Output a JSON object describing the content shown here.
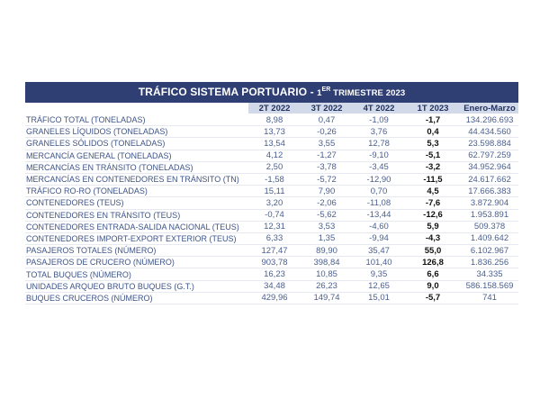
{
  "title": {
    "main": "TRÁFICO SISTEMA PORTUARIO - ",
    "num": "1",
    "sup": "ER",
    "rest": " TRIMESTRE 2023"
  },
  "columns": [
    "2T 2022",
    "3T 2022",
    "4T 2022",
    "1T 2023",
    "Enero-Marzo"
  ],
  "rows": [
    {
      "label": "TRÁFICO TOTAL (TONELADAS)",
      "values": [
        "8,98",
        "0,47",
        "-1,09",
        "-1,7",
        "134.296.693"
      ]
    },
    {
      "label": "GRANELES LÍQUIDOS (TONELADAS)",
      "values": [
        "13,73",
        "-0,26",
        "3,76",
        "0,4",
        "44.434.560"
      ]
    },
    {
      "label": "GRANELES SÓLIDOS (TONELADAS)",
      "values": [
        "13,54",
        "3,55",
        "12,78",
        "5,3",
        "23.598.884"
      ]
    },
    {
      "label": "MERCANCÍA GENERAL (TONELADAS)",
      "values": [
        "4,12",
        "-1,27",
        "-9,10",
        "-5,1",
        "62.797.259"
      ]
    },
    {
      "label": "MERCANCÍAS EN TRÁNSITO (TONELADAS)",
      "values": [
        "2,50",
        "-3,78",
        "-3,45",
        "-3,2",
        "34.952.964"
      ]
    },
    {
      "label": "MERCANCÍAS EN CONTENEDORES EN TRÁNSITO (TN)",
      "values": [
        "-1,58",
        "-5,72",
        "-12,90",
        "-11,5",
        "24.617.662"
      ]
    },
    {
      "label": "TRÁFICO RO-RO (TONELADAS)",
      "values": [
        "15,11",
        "7,90",
        "0,70",
        "4,5",
        "17.666.383"
      ]
    },
    {
      "label": "CONTENEDORES (TEUS)",
      "values": [
        "3,20",
        "-2,06",
        "-11,08",
        "-7,6",
        "3.872.904"
      ]
    },
    {
      "label": "CONTENEDORES EN TRÁNSITO (TEUS)",
      "values": [
        "-0,74",
        "-5,62",
        "-13,44",
        "-12,6",
        "1.953.891"
      ]
    },
    {
      "label": "CONTENEDORES ENTRADA-SALIDA NACIONAL (TEUS)",
      "values": [
        "12,31",
        "3,53",
        "-4,60",
        "5,9",
        "509.378"
      ]
    },
    {
      "label": "CONTENEDORES IMPORT-EXPORT EXTERIOR (TEUS)",
      "values": [
        "6,33",
        "1,35",
        "-9,94",
        "-4,3",
        "1.409.642"
      ]
    },
    {
      "label": "PASAJEROS TOTALES (NÚMERO)",
      "values": [
        "127,47",
        "89,90",
        "35,47",
        "55,0",
        "6.102.967"
      ]
    },
    {
      "label": "PASAJEROS DE CRUCERO (NÚMERO)",
      "values": [
        "903,78",
        "398,84",
        "101,40",
        "126,8",
        "1.836.256"
      ]
    },
    {
      "label": "TOTAL BUQUES (NÚMERO)",
      "values": [
        "16,23",
        "10,85",
        "9,35",
        "6,6",
        "34.335"
      ]
    },
    {
      "label": "UNIDADES ARQUEO BRUTO BUQUES (G.T.)",
      "values": [
        "34,48",
        "26,23",
        "12,65",
        "9,0",
        "586.158.569"
      ]
    },
    {
      "label": "BUQUES CRUCEROS (NÚMERO)",
      "values": [
        "429,96",
        "149,74",
        "15,01",
        "-5,7",
        "741"
      ]
    }
  ]
}
